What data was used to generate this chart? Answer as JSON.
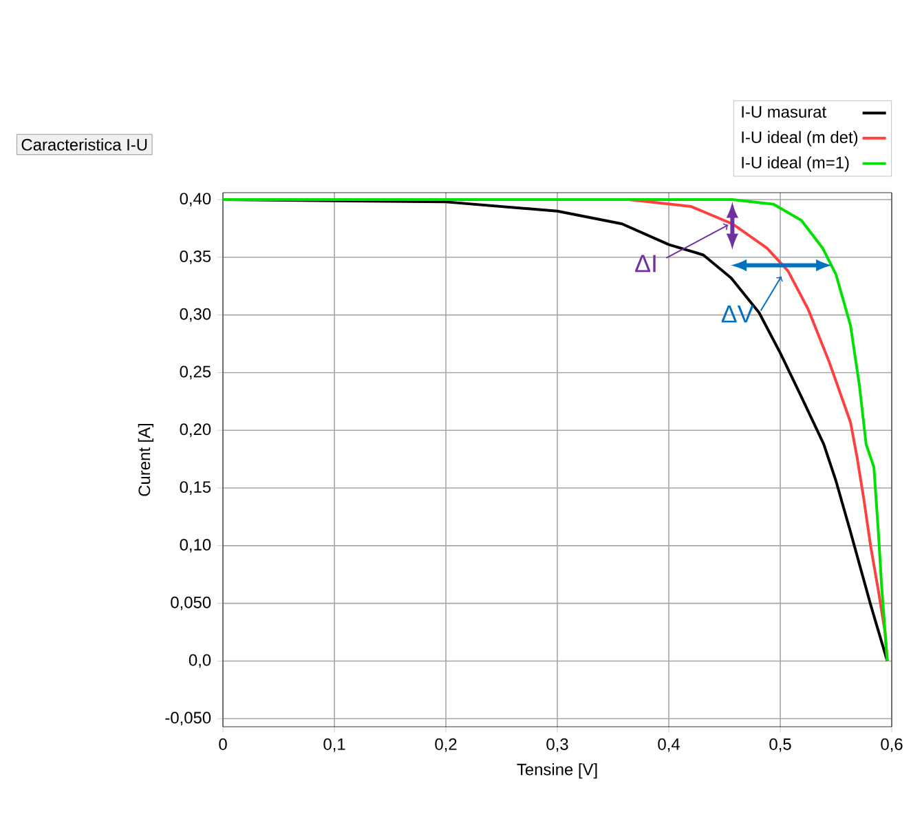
{
  "chart_data": {
    "type": "line",
    "title": "Caracteristica I-U",
    "xlabel": "Tensine [V]",
    "ylabel": "Curent [A]",
    "xlim": [
      0,
      0.6
    ],
    "ylim": [
      -0.057,
      0.406
    ],
    "xticks": [
      0,
      {
        "value": 0.1,
        "label": "0,1"
      },
      {
        "value": 0.2,
        "label": "0,2"
      },
      {
        "value": 0.3,
        "label": "0,3"
      },
      {
        "value": 0.4,
        "label": "0,4"
      },
      {
        "value": 0.5,
        "label": "0,5"
      },
      {
        "value": 0.6,
        "label": "0,6"
      }
    ],
    "yticks": [
      {
        "value": -0.05,
        "label": "-0,050"
      },
      {
        "value": 0,
        "label": "0,0"
      },
      {
        "value": 0.05,
        "label": "0,050"
      },
      {
        "value": 0.1,
        "label": "0,10"
      },
      {
        "value": 0.15,
        "label": "0,15"
      },
      {
        "value": 0.2,
        "label": "0,20"
      },
      {
        "value": 0.25,
        "label": "0,25"
      },
      {
        "value": 0.3,
        "label": "0,30"
      },
      {
        "value": 0.35,
        "label": "0,35"
      },
      {
        "value": 0.4,
        "label": "0,40"
      }
    ],
    "grid": true,
    "legend": "top right",
    "marker": "none",
    "series": [
      {
        "name": "I-U masurat",
        "color": "#000000",
        "x": [
          0,
          0.2,
          0.3,
          0.358,
          0.4,
          0.431,
          0.456,
          0.481,
          0.5,
          0.518,
          0.539,
          0.55,
          0.563,
          0.581,
          0.596
        ],
        "values": [
          0.4,
          0.398,
          0.39,
          0.379,
          0.361,
          0.352,
          0.332,
          0.302,
          0.267,
          0.231,
          0.188,
          0.156,
          0.112,
          0.049,
          0
        ]
      },
      {
        "name": "I-U ideal (m det)",
        "color": "#ff4040",
        "x": [
          0,
          0.364,
          0.42,
          0.457,
          0.488,
          0.507,
          0.525,
          0.544,
          0.563,
          0.569,
          0.575,
          0.581,
          0.588,
          0.594,
          0.596
        ],
        "values": [
          0.4,
          0.4,
          0.394,
          0.379,
          0.358,
          0.338,
          0.305,
          0.259,
          0.207,
          0.176,
          0.14,
          0.1,
          0.061,
          0.025,
          0
        ]
      },
      {
        "name": "I-U ideal (m=1)",
        "color": "#00e000",
        "x": [
          0,
          0.457,
          0.494,
          0.519,
          0.538,
          0.55,
          0.563,
          0.571,
          0.577,
          0.584,
          0.588,
          0.591,
          0.596
        ],
        "values": [
          0.4,
          0.4,
          0.396,
          0.382,
          0.358,
          0.335,
          0.291,
          0.239,
          0.188,
          0.168,
          0.112,
          0.064,
          0
        ]
      }
    ],
    "annotations": [
      {
        "text": "ΔI",
        "x": 0.457,
        "y": 0.378
      },
      {
        "text": "ΔV",
        "x": 0.501,
        "y": 0.343
      }
    ]
  }
}
